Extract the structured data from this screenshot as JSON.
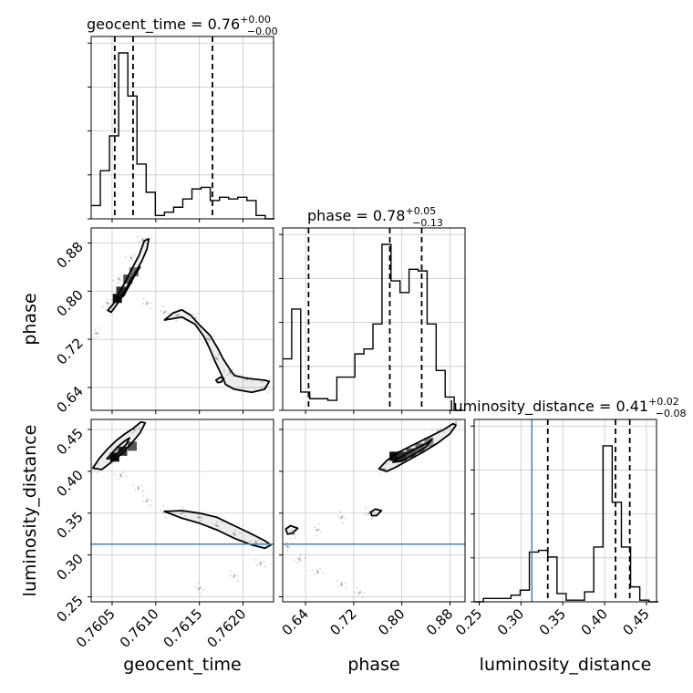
{
  "chart_data": {
    "type": "corner",
    "parameters": [
      "geocent_time",
      "phase",
      "luminosity_distance"
    ],
    "panel_titles": [
      {
        "name": "geocent_time",
        "median": "0.76",
        "plus": "+0.00",
        "minus": "−0.00"
      },
      {
        "name": "phase",
        "median": "0.78",
        "plus": "+0.05",
        "minus": "−0.13"
      },
      {
        "name": "luminosity_distance",
        "median": "0.41",
        "plus": "+0.02",
        "minus": "−0.08"
      }
    ],
    "axis_ranges": {
      "geocent_time": [
        0.76026,
        0.76235
      ],
      "phase": [
        0.602,
        0.905
      ],
      "luminosity_distance": [
        0.244,
        0.462
      ]
    },
    "tick_labels": {
      "geocent_time": [
        "0.7605",
        "0.7610",
        "0.7615",
        "0.7620"
      ],
      "phase": [
        "0.64",
        "0.72",
        "0.80",
        "0.88"
      ],
      "luminosity_distance": [
        "0.25",
        "0.30",
        "0.35",
        "0.40",
        "0.45"
      ]
    },
    "tick_values": {
      "geocent_time": [
        0.7605,
        0.761,
        0.7615,
        0.762
      ],
      "phase": [
        0.64,
        0.72,
        0.8,
        0.88
      ],
      "luminosity_distance": [
        0.25,
        0.3,
        0.35,
        0.4,
        0.45
      ]
    },
    "quantile_lines": {
      "geocent_time": [
        0.76053,
        0.76074,
        0.76165
      ],
      "phase": [
        0.645,
        0.78,
        0.833
      ],
      "luminosity_distance": [
        0.332,
        0.413,
        0.43
      ]
    },
    "truth": {
      "luminosity_distance": 0.313
    },
    "histograms": {
      "geocent_time": {
        "edges": [
          0.76026,
          0.760365,
          0.76047,
          0.760575,
          0.76068,
          0.760785,
          0.76089,
          0.760995,
          0.7611,
          0.761205,
          0.76131,
          0.761415,
          0.76152,
          0.761625,
          0.76173,
          0.761835,
          0.76194,
          0.762045,
          0.76215,
          0.762255,
          0.76236
        ],
        "counts": [
          0.08,
          0.29,
          0.5,
          1.0,
          0.74,
          0.33,
          0.16,
          0.02,
          0.04,
          0.07,
          0.12,
          0.18,
          0.19,
          0.11,
          0.13,
          0.12,
          0.13,
          0.11,
          0.02,
          0.0
        ]
      },
      "phase": {
        "edges": [
          0.602,
          0.617,
          0.632,
          0.647,
          0.662,
          0.677,
          0.692,
          0.707,
          0.722,
          0.737,
          0.752,
          0.767,
          0.782,
          0.797,
          0.812,
          0.827,
          0.842,
          0.857,
          0.872,
          0.887,
          0.902
        ],
        "counts": [
          0.31,
          0.61,
          0.11,
          0.07,
          0.07,
          0.06,
          0.2,
          0.2,
          0.34,
          0.37,
          0.52,
          1.0,
          0.78,
          0.71,
          0.85,
          0.84,
          0.52,
          0.24,
          0.08,
          0.0
        ]
      },
      "luminosity_distance": {
        "edges": [
          0.244,
          0.255,
          0.266,
          0.277,
          0.288,
          0.299,
          0.31,
          0.321,
          0.332,
          0.343,
          0.354,
          0.365,
          0.376,
          0.387,
          0.398,
          0.409,
          0.42,
          0.431,
          0.442,
          0.453,
          0.464
        ],
        "counts": [
          0.0,
          0.02,
          0.02,
          0.02,
          0.04,
          0.07,
          0.3,
          0.31,
          0.27,
          0.05,
          0.01,
          0.01,
          0.06,
          0.33,
          0.94,
          0.6,
          0.33,
          0.09,
          0.01,
          0.0
        ]
      }
    },
    "scatter": {
      "phase_vs_geocent_time": [
        [
          0.76032,
          0.73
        ],
        [
          0.76045,
          0.78
        ],
        [
          0.76058,
          0.82
        ],
        [
          0.76072,
          0.855
        ],
        [
          0.76085,
          0.885
        ],
        [
          0.7609,
          0.78
        ],
        [
          0.7611,
          0.765
        ],
        [
          0.76125,
          0.76
        ],
        [
          0.76145,
          0.755
        ],
        [
          0.7616,
          0.72
        ],
        [
          0.7617,
          0.688
        ],
        [
          0.76185,
          0.665
        ],
        [
          0.76205,
          0.655
        ],
        [
          0.76225,
          0.64
        ]
      ],
      "luminosity_distance_vs_geocent_time": [
        [
          0.7603,
          0.403
        ],
        [
          0.76055,
          0.425
        ],
        [
          0.76075,
          0.45
        ],
        [
          0.7606,
          0.395
        ],
        [
          0.7608,
          0.38
        ],
        [
          0.7609,
          0.365
        ],
        [
          0.7611,
          0.352
        ],
        [
          0.7613,
          0.35
        ],
        [
          0.7615,
          0.345
        ],
        [
          0.7617,
          0.335
        ],
        [
          0.7619,
          0.325
        ],
        [
          0.76215,
          0.315
        ],
        [
          0.7622,
          0.29
        ],
        [
          0.7619,
          0.275
        ],
        [
          0.7615,
          0.26
        ]
      ],
      "luminosity_distance_vs_phase": [
        [
          0.77,
          0.403
        ],
        [
          0.8,
          0.418
        ],
        [
          0.83,
          0.432
        ],
        [
          0.86,
          0.448
        ],
        [
          0.89,
          0.458
        ],
        [
          0.745,
          0.35
        ],
        [
          0.7,
          0.345
        ],
        [
          0.66,
          0.33
        ],
        [
          0.62,
          0.325
        ],
        [
          0.61,
          0.31
        ],
        [
          0.63,
          0.295
        ],
        [
          0.66,
          0.28
        ],
        [
          0.7,
          0.265
        ],
        [
          0.73,
          0.255
        ]
      ]
    },
    "contours": {
      "phase_vs_geocent_time": [
        [
          [
            0.76045,
            0.768
          ],
          [
            0.76052,
            0.78
          ],
          [
            0.76063,
            0.81
          ],
          [
            0.76073,
            0.838
          ],
          [
            0.76081,
            0.86
          ],
          [
            0.76087,
            0.884
          ],
          [
            0.76092,
            0.887
          ],
          [
            0.7609,
            0.87
          ],
          [
            0.76084,
            0.85
          ],
          [
            0.76077,
            0.832
          ],
          [
            0.76069,
            0.81
          ],
          [
            0.76062,
            0.793
          ],
          [
            0.76055,
            0.777
          ],
          [
            0.76049,
            0.765
          ]
        ],
        [
          [
            0.76057,
            0.785
          ],
          [
            0.76064,
            0.8
          ],
          [
            0.76071,
            0.817
          ],
          [
            0.76077,
            0.832
          ],
          [
            0.76082,
            0.84
          ],
          [
            0.76076,
            0.826
          ],
          [
            0.7607,
            0.81
          ],
          [
            0.76063,
            0.792
          ]
        ],
        [
          [
            0.7611,
            0.752
          ],
          [
            0.7612,
            0.764
          ],
          [
            0.7613,
            0.769
          ],
          [
            0.7614,
            0.76
          ],
          [
            0.7615,
            0.744
          ],
          [
            0.76162,
            0.727
          ],
          [
            0.76171,
            0.705
          ],
          [
            0.76177,
            0.688
          ],
          [
            0.76185,
            0.67
          ],
          [
            0.7619,
            0.66
          ],
          [
            0.76205,
            0.655
          ],
          [
            0.76225,
            0.652
          ],
          [
            0.7623,
            0.65
          ],
          [
            0.76225,
            0.637
          ],
          [
            0.7621,
            0.632
          ],
          [
            0.7619,
            0.637
          ],
          [
            0.7618,
            0.645
          ],
          [
            0.76175,
            0.662
          ],
          [
            0.76168,
            0.683
          ],
          [
            0.76162,
            0.704
          ],
          [
            0.76155,
            0.725
          ],
          [
            0.76145,
            0.745
          ],
          [
            0.7613,
            0.757
          ]
        ],
        [
          [
            0.76169,
            0.652
          ],
          [
            0.76174,
            0.657
          ],
          [
            0.76178,
            0.655
          ],
          [
            0.76175,
            0.649
          ],
          [
            0.76171,
            0.648
          ]
        ]
      ],
      "luminosity_distance_vs_geocent_time": [
        [
          [
            0.76028,
            0.404
          ],
          [
            0.76035,
            0.415
          ],
          [
            0.76045,
            0.427
          ],
          [
            0.76055,
            0.437
          ],
          [
            0.76065,
            0.445
          ],
          [
            0.76075,
            0.452
          ],
          [
            0.76083,
            0.459
          ],
          [
            0.76088,
            0.458
          ],
          [
            0.76082,
            0.446
          ],
          [
            0.76072,
            0.433
          ],
          [
            0.7606,
            0.42
          ],
          [
            0.76048,
            0.41
          ],
          [
            0.76038,
            0.402
          ]
        ],
        [
          [
            0.76044,
            0.415
          ],
          [
            0.7605,
            0.422
          ],
          [
            0.76057,
            0.43
          ],
          [
            0.76064,
            0.436
          ],
          [
            0.7607,
            0.44
          ],
          [
            0.76066,
            0.432
          ],
          [
            0.76059,
            0.424
          ],
          [
            0.76051,
            0.416
          ]
        ],
        [
          [
            0.7611,
            0.352
          ],
          [
            0.7613,
            0.353
          ],
          [
            0.7615,
            0.35
          ],
          [
            0.7617,
            0.345
          ],
          [
            0.7619,
            0.335
          ],
          [
            0.7621,
            0.325
          ],
          [
            0.76225,
            0.317
          ],
          [
            0.76232,
            0.312
          ],
          [
            0.76225,
            0.308
          ],
          [
            0.7621,
            0.312
          ],
          [
            0.7619,
            0.32
          ],
          [
            0.7617,
            0.33
          ],
          [
            0.7615,
            0.338
          ],
          [
            0.7613,
            0.344
          ]
        ]
      ],
      "luminosity_distance_vs_phase": [
        [
          [
            0.762,
            0.403
          ],
          [
            0.775,
            0.413
          ],
          [
            0.795,
            0.423
          ],
          [
            0.82,
            0.432
          ],
          [
            0.845,
            0.441
          ],
          [
            0.87,
            0.45
          ],
          [
            0.885,
            0.457
          ],
          [
            0.89,
            0.455
          ],
          [
            0.88,
            0.445
          ],
          [
            0.86,
            0.434
          ],
          [
            0.835,
            0.423
          ],
          [
            0.81,
            0.413
          ],
          [
            0.79,
            0.405
          ],
          [
            0.775,
            0.4
          ]
        ],
        [
          [
            0.785,
            0.411
          ],
          [
            0.8,
            0.418
          ],
          [
            0.82,
            0.426
          ],
          [
            0.84,
            0.433
          ],
          [
            0.85,
            0.438
          ],
          [
            0.84,
            0.429
          ],
          [
            0.82,
            0.42
          ],
          [
            0.8,
            0.412
          ]
        ],
        [
          [
            0.607,
            0.331
          ],
          [
            0.615,
            0.335
          ],
          [
            0.627,
            0.332
          ],
          [
            0.618,
            0.326
          ],
          [
            0.61,
            0.325
          ]
        ],
        [
          [
            0.748,
            0.351
          ],
          [
            0.756,
            0.355
          ],
          [
            0.766,
            0.353
          ],
          [
            0.758,
            0.347
          ],
          [
            0.75,
            0.347
          ]
        ]
      ]
    },
    "density_blobs": {
      "phase_vs_geocent_time": [
        [
          0.76056,
          0.788
        ],
        [
          0.7606,
          0.8
        ],
        [
          0.76068,
          0.82
        ],
        [
          0.76075,
          0.832
        ]
      ],
      "luminosity_distance_vs_geocent_time": [
        [
          0.76053,
          0.417
        ],
        [
          0.76062,
          0.424
        ],
        [
          0.76073,
          0.43
        ]
      ],
      "luminosity_distance_vs_phase": [
        [
          0.787,
          0.418
        ],
        [
          0.8,
          0.418
        ],
        [
          0.815,
          0.422
        ],
        [
          0.83,
          0.428
        ],
        [
          0.845,
          0.435
        ]
      ]
    }
  }
}
